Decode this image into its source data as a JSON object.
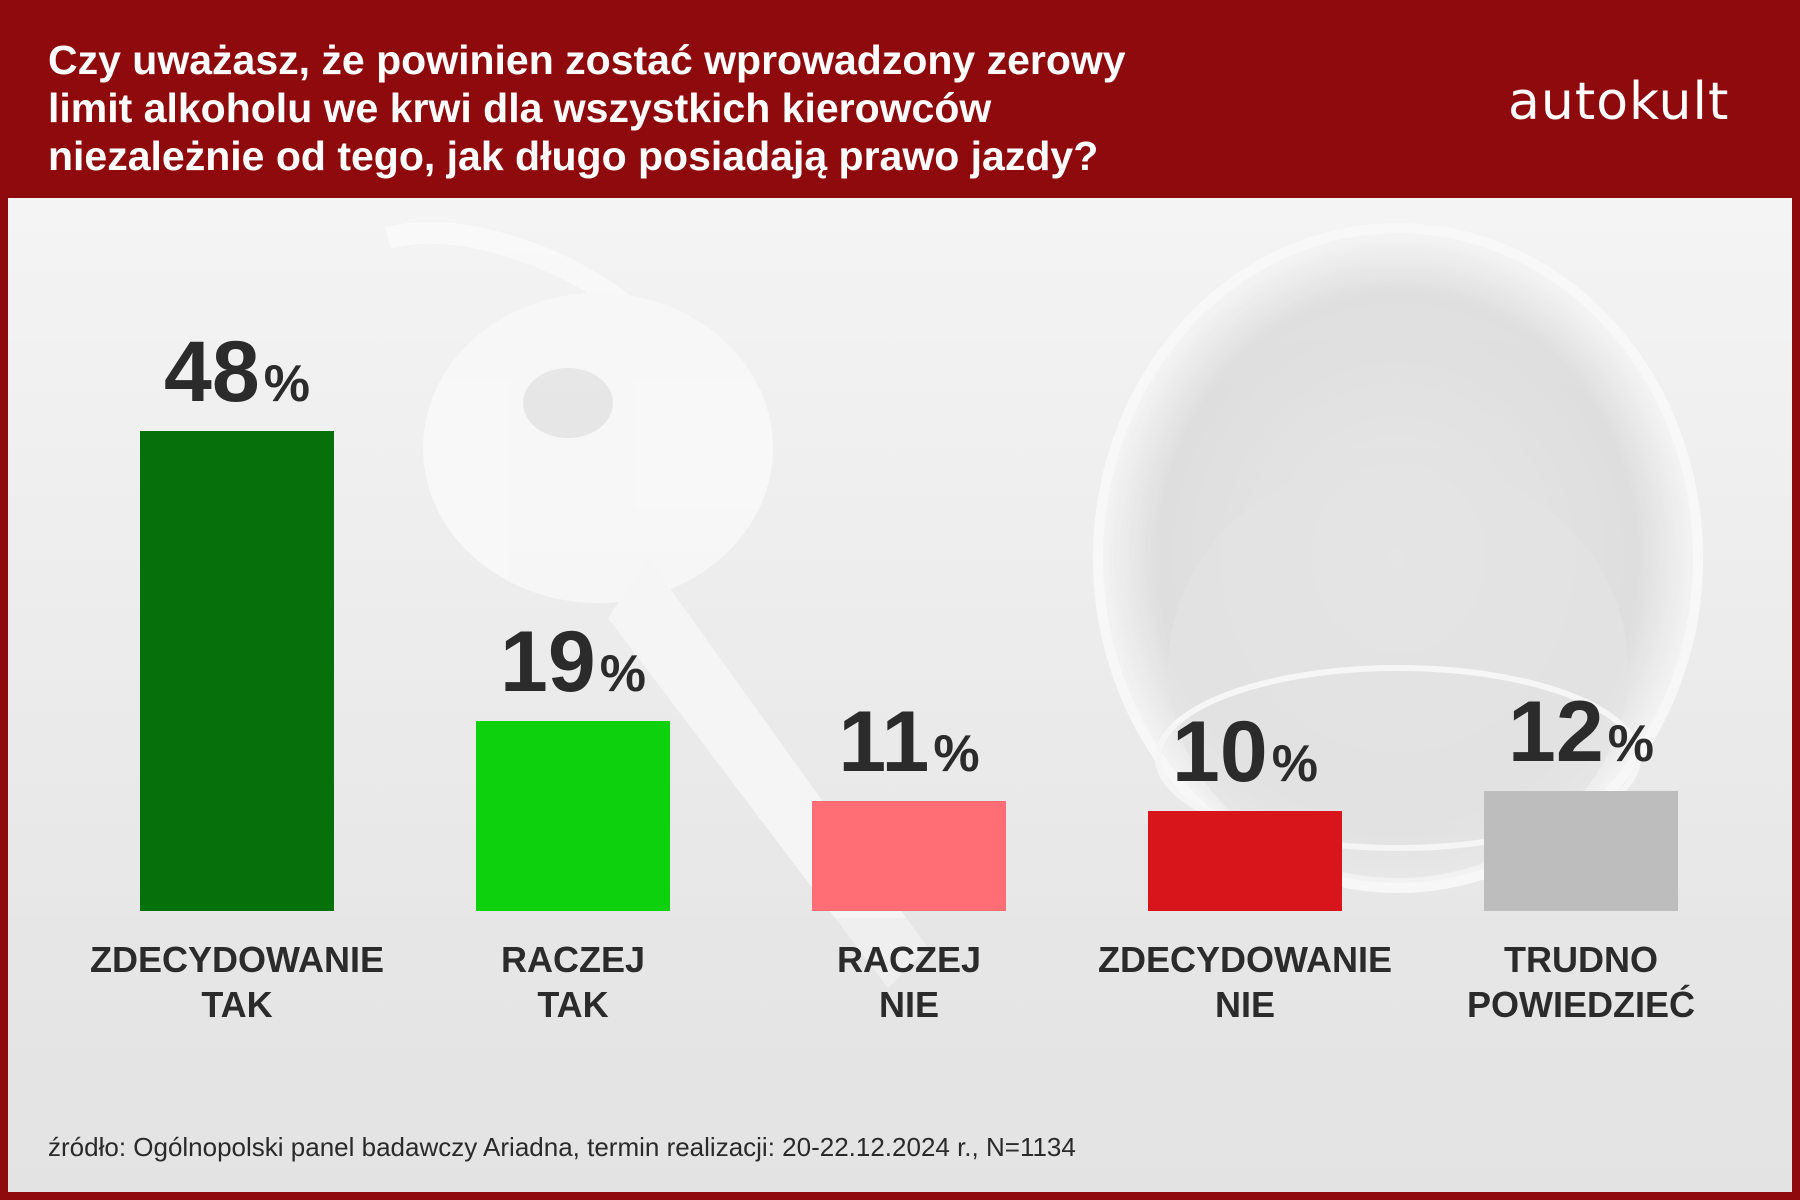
{
  "header": {
    "title_lines": [
      "Czy uważasz, że powinien zostać wprowadzony zerowy",
      "limit alkoholu we krwi dla wszystkich kierowców",
      "niezależnie od tego, jak długo posiadają prawo jazdy?"
    ],
    "logo": "autokult"
  },
  "colors": {
    "brand_red": "#8f0a0c",
    "zdecydowanie_tak": "#06700a",
    "raczej_tak": "#0cd10c",
    "raczej_nie": "#ff6e74",
    "zdecydowanie_nie": "#d7151b",
    "trudno_powiedziec": "#bdbdbd"
  },
  "chart_data": {
    "type": "bar",
    "categories": [
      [
        "ZDECYDOWANIE",
        "TAK"
      ],
      [
        "RACZEJ",
        "TAK"
      ],
      [
        "RACZEJ",
        "NIE"
      ],
      [
        "ZDECYDOWANIE",
        "NIE"
      ],
      [
        "TRUDNO",
        "POWIEDZIEĆ"
      ]
    ],
    "values": [
      48,
      19,
      11,
      10,
      12
    ],
    "value_labels": [
      "48",
      "19",
      "11",
      "10",
      "12"
    ],
    "unit": "%",
    "bar_colors": [
      "#06700a",
      "#0cd10c",
      "#ff6e74",
      "#d7151b",
      "#bdbdbd"
    ],
    "grid": false,
    "legend": "none"
  },
  "footer": {
    "source": "źródło: Ogólnopolski panel badawczy Ariadna, termin realizacji: 20-22.12.2024 r., N=1134"
  }
}
